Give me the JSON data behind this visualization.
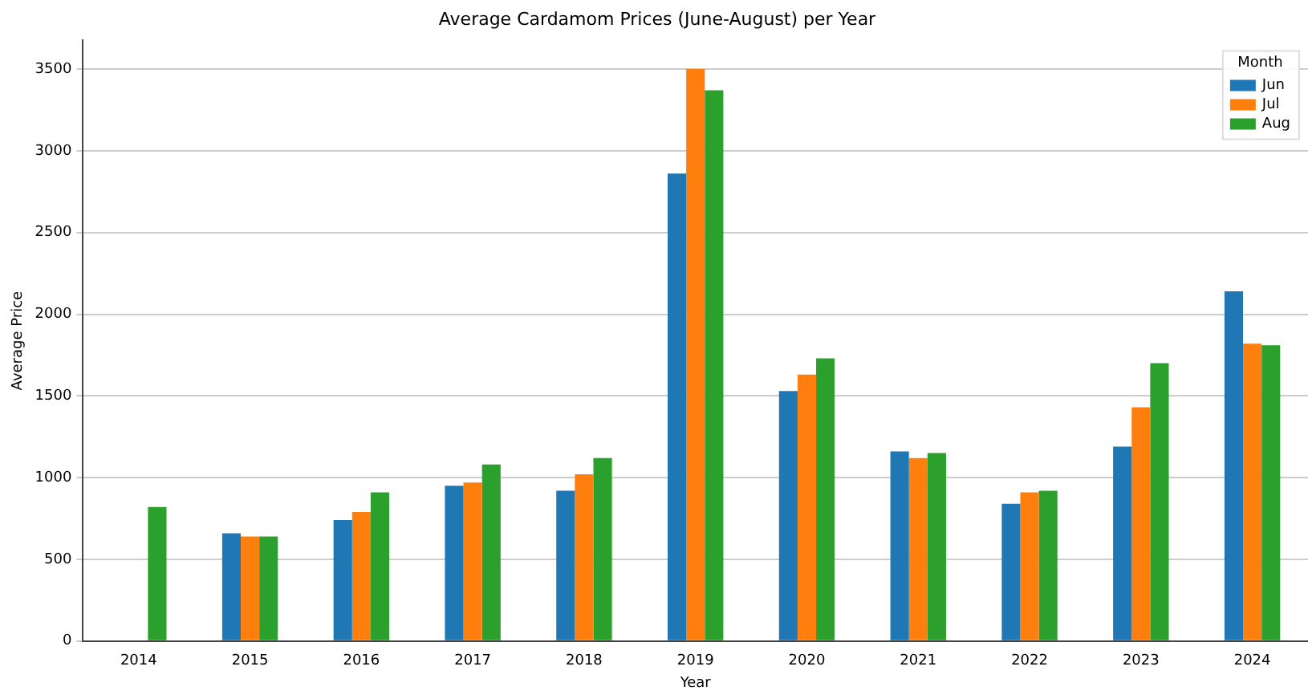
{
  "chart_data": {
    "type": "bar",
    "title": "Average Cardamom Prices (June-August) per Year",
    "xlabel": "Year",
    "ylabel": "Average Price",
    "legend_title": "Month",
    "categories": [
      "2014",
      "2015",
      "2016",
      "2017",
      "2018",
      "2019",
      "2020",
      "2021",
      "2022",
      "2023",
      "2024"
    ],
    "series": [
      {
        "name": "Jun",
        "color": "#1f77b4",
        "values": [
          null,
          660,
          740,
          950,
          920,
          2860,
          1530,
          1160,
          840,
          1190,
          2140
        ]
      },
      {
        "name": "Jul",
        "color": "#ff7f0e",
        "values": [
          null,
          640,
          790,
          970,
          1020,
          3500,
          1630,
          1120,
          910,
          1430,
          1820
        ]
      },
      {
        "name": "Aug",
        "color": "#2ca02c",
        "values": [
          820,
          640,
          910,
          1080,
          1120,
          3370,
          1730,
          1150,
          920,
          1700,
          1810
        ]
      }
    ],
    "ylim": [
      0,
      3675
    ],
    "yticks": [
      0,
      500,
      1000,
      1500,
      2000,
      2500,
      3000,
      3500
    ],
    "grid": "y",
    "legend": "top right"
  }
}
